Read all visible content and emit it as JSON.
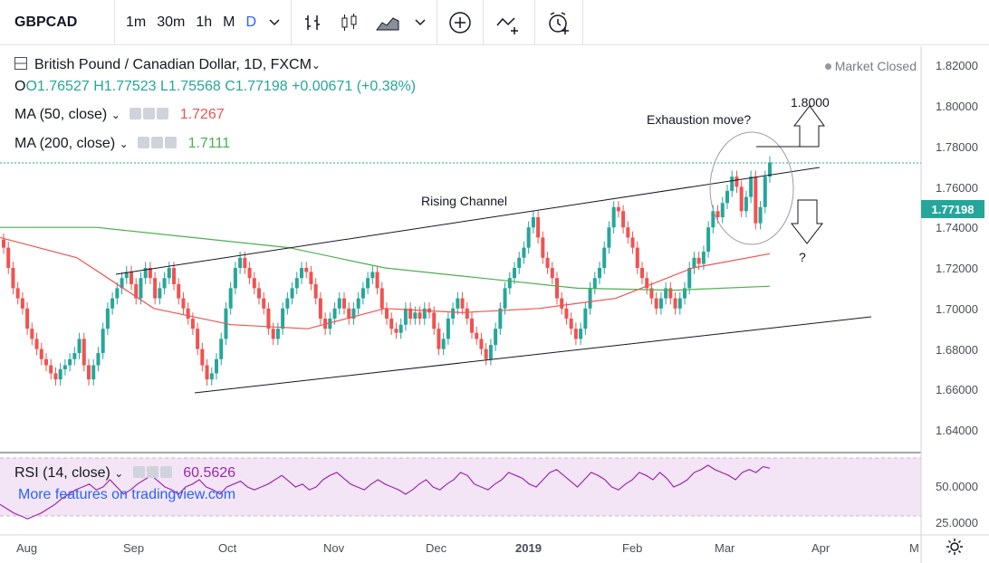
{
  "toolbar": {
    "symbol": "GBPCAD",
    "intervals": [
      "1m",
      "30m",
      "1h",
      "M",
      "D"
    ],
    "active_interval": "D"
  },
  "header": {
    "title": "British Pound / Canadian Dollar, 1D, FXCM",
    "ohlc": {
      "o": "O1.76527",
      "h": "H1.77523",
      "l": "L1.75568",
      "c": "C1.77198",
      "change": "+0.00671 (+0.38%)"
    },
    "market_status": "Market Closed"
  },
  "indicators": {
    "ma50": {
      "label": "MA (50, close)",
      "value": "1.7267",
      "color": "#ef5350"
    },
    "ma200": {
      "label": "MA (200, close)",
      "value": "1.7111",
      "color": "#4caf50"
    },
    "rsi": {
      "label": "RSI (14, close)",
      "value": "60.5626",
      "color": "#9c27b0"
    }
  },
  "promo": "More features on tradingview.com",
  "annotations": {
    "rising_channel": "Rising Channel",
    "exhaustion": "Exhaustion move?",
    "target_up": "1.8000",
    "target_down": "?"
  },
  "last_price": "1.77198",
  "price_axis": [
    "1.82000",
    "1.80000",
    "1.78000",
    "1.76000",
    "1.74000",
    "1.72000",
    "1.70000",
    "1.68000",
    "1.66000",
    "1.64000"
  ],
  "rsi_axis": [
    "50.0000",
    "25.0000"
  ],
  "time_axis": [
    "Aug",
    "Sep",
    "Oct",
    "Nov",
    "Dec",
    "2019",
    "Feb",
    "Mar",
    "Apr",
    "M"
  ],
  "colors": {
    "up": "#26a69a",
    "down": "#ef5350",
    "rsi_band": "#f3e5f5"
  },
  "chart_data": {
    "type": "candlestick",
    "ylim": [
      1.63,
      1.825
    ],
    "ma50": [
      1.735,
      1.725,
      1.7,
      1.692,
      1.69,
      1.7,
      1.698,
      1.7,
      1.705,
      1.72,
      1.727
    ],
    "ma200": [
      1.74,
      1.74,
      1.735,
      1.73,
      1.72,
      1.715,
      1.71,
      1.709,
      1.711
    ],
    "closes": [
      1.73,
      1.72,
      1.71,
      1.705,
      1.7,
      1.69,
      1.685,
      1.68,
      1.675,
      1.672,
      1.668,
      1.665,
      1.67,
      1.672,
      1.675,
      1.678,
      1.685,
      1.672,
      1.665,
      1.672,
      1.678,
      1.69,
      1.7,
      1.705,
      1.71,
      1.715,
      1.718,
      1.712,
      1.705,
      1.715,
      1.72,
      1.715,
      1.705,
      1.71,
      1.715,
      1.72,
      1.712,
      1.705,
      1.7,
      1.695,
      1.69,
      1.68,
      1.672,
      1.665,
      1.668,
      1.675,
      1.685,
      1.7,
      1.71,
      1.72,
      1.725,
      1.72,
      1.715,
      1.71,
      1.705,
      1.7,
      1.69,
      1.685,
      1.69,
      1.7,
      1.705,
      1.71,
      1.715,
      1.72,
      1.718,
      1.712,
      1.705,
      1.695,
      1.69,
      1.695,
      1.7,
      1.705,
      1.7,
      1.695,
      1.7,
      1.705,
      1.71,
      1.715,
      1.718,
      1.71,
      1.7,
      1.695,
      1.69,
      1.688,
      1.692,
      1.7,
      1.695,
      1.698,
      1.695,
      1.7,
      1.698,
      1.69,
      1.68,
      1.685,
      1.695,
      1.7,
      1.705,
      1.7,
      1.695,
      1.688,
      1.685,
      1.68,
      1.675,
      1.682,
      1.69,
      1.7,
      1.71,
      1.715,
      1.72,
      1.725,
      1.73,
      1.74,
      1.745,
      1.735,
      1.725,
      1.72,
      1.715,
      1.705,
      1.7,
      1.695,
      1.69,
      1.685,
      1.69,
      1.7,
      1.71,
      1.715,
      1.72,
      1.73,
      1.74,
      1.75,
      1.748,
      1.74,
      1.735,
      1.73,
      1.72,
      1.715,
      1.71,
      1.705,
      1.7,
      1.705,
      1.71,
      1.705,
      1.7,
      1.705,
      1.71,
      1.72,
      1.725,
      1.722,
      1.728,
      1.74,
      1.748,
      1.745,
      1.752,
      1.758,
      1.765,
      1.76,
      1.748,
      1.755,
      1.765,
      1.742,
      1.75,
      1.765,
      1.772
    ],
    "rsi": [
      38,
      35,
      32,
      30,
      28,
      30,
      32,
      35,
      38,
      42,
      45,
      48,
      50,
      52,
      48,
      50,
      55,
      50,
      45,
      48,
      52,
      55,
      58,
      54,
      50,
      48,
      45,
      50,
      52,
      55,
      50,
      48,
      45,
      50,
      52,
      54,
      50,
      48,
      50,
      52,
      55,
      58,
      54,
      50,
      52,
      48,
      50,
      55,
      58,
      60,
      56,
      52,
      50,
      48,
      52,
      55,
      52,
      50,
      48,
      45,
      48,
      52,
      55,
      50,
      48,
      52,
      55,
      60,
      58,
      52,
      50,
      48,
      52,
      55,
      60,
      58,
      56,
      52,
      50,
      55,
      60,
      62,
      58,
      54,
      50,
      55,
      60,
      58,
      55,
      50,
      48,
      52,
      55,
      60,
      58,
      55,
      60,
      56,
      50,
      52,
      55,
      60,
      62,
      65,
      62,
      60,
      58,
      55,
      60,
      62,
      60,
      64,
      63
    ],
    "rising_channel_top": [
      [
        1.7175,
        "Sep"
      ],
      [
        1.7695,
        "Apr"
      ]
    ],
    "rising_channel_bottom": [
      [
        1.6595,
        "Sep"
      ],
      [
        1.6955,
        "Apr"
      ]
    ]
  }
}
